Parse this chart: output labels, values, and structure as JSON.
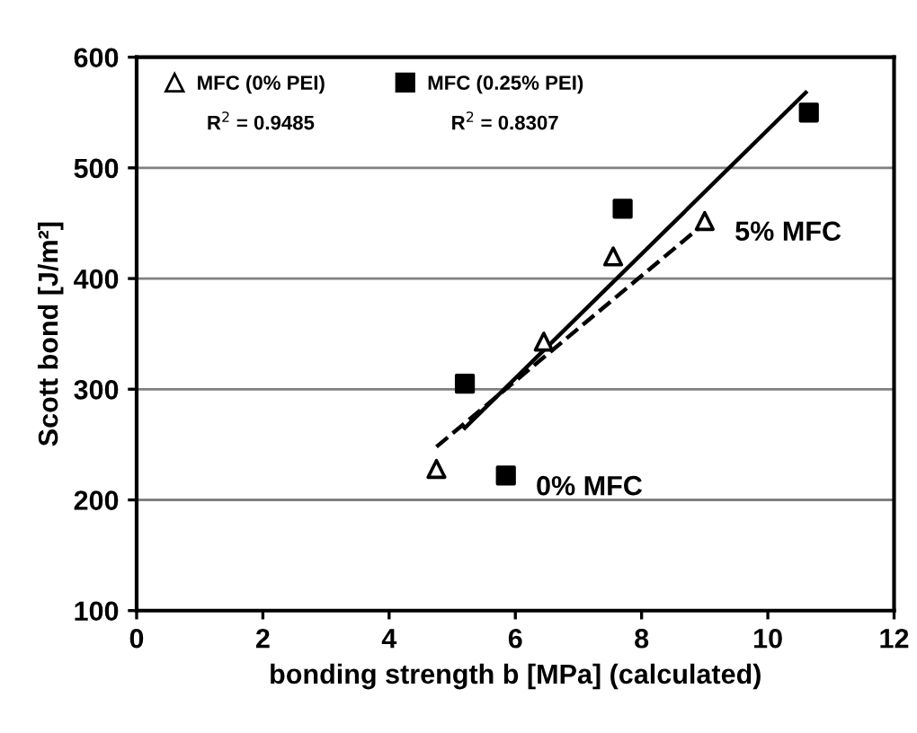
{
  "chart_data": {
    "type": "scatter",
    "xlabel": "bonding strength b [MPa] (calculated)",
    "ylabel": "Scott bond [J/m²]",
    "xlim": [
      0,
      12
    ],
    "ylim": [
      100,
      600
    ],
    "xticks": [
      0,
      2,
      4,
      6,
      8,
      10,
      12
    ],
    "yticks": [
      100,
      200,
      300,
      400,
      500,
      600
    ],
    "grid": "y",
    "legend": "top left",
    "series": [
      {
        "name": "MFC (0% PEI)",
        "marker": "triangle",
        "color": "#000000",
        "x": [
          4.75,
          6.45,
          7.55,
          9.0
        ],
        "values": [
          228,
          343,
          420,
          452
        ]
      },
      {
        "name": "MFC (0.25% PEI)",
        "marker": "square",
        "color": "#000000",
        "x": [
          5.2,
          5.85,
          7.7,
          10.65
        ],
        "values": [
          305,
          222,
          463,
          550
        ]
      },
      {
        "type": "line",
        "line_style": "dashed",
        "color": "#000000",
        "x": [
          4.75,
          9.0
        ],
        "values": [
          248,
          450
        ]
      },
      {
        "type": "line",
        "line_style": "solid",
        "color": "#000000",
        "x": [
          5.2,
          10.6
        ],
        "values": [
          265,
          568
        ]
      }
    ],
    "annotations": [
      "R$^{2}$ = 0.9485",
      "R$^{2}$ = 0.8307",
      {
        "text": "5% MFC",
        "x": 9.0,
        "y": 452
      },
      {
        "text": "0% MFC",
        "x": 5.85,
        "y": 222
      }
    ]
  }
}
